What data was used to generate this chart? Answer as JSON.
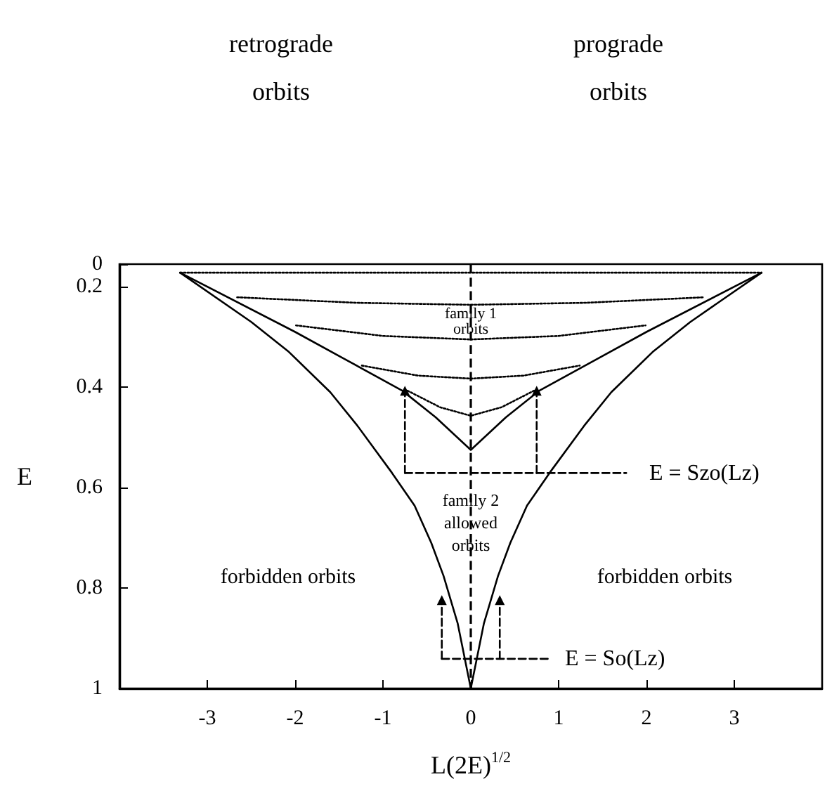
{
  "chart_data": {
    "type": "line",
    "xlabel": "L(2E)$^{1/2}$",
    "ylabel": "E",
    "xlim": [
      -4,
      4
    ],
    "xticks": [
      -3,
      -2,
      -1,
      0,
      1,
      2,
      3
    ],
    "ylim": [
      1,
      0.155
    ],
    "yticks": [
      {
        "value": 0.155,
        "label": "0"
      },
      0.2,
      0.4,
      0.6,
      0.8,
      1
    ],
    "grid": false,
    "marker": "none",
    "ref_lines": [
      {
        "axis": "x",
        "value": 0,
        "line_style": "dashed",
        "color": "#000000"
      }
    ],
    "series": [
      {
        "color": "#000000",
        "line_style": "solid",
        "x": [
          -3.31,
          -2.5,
          -2.07,
          -1.6,
          -1.29,
          -0.9,
          -0.64,
          -0.45,
          -0.31,
          -0.15,
          0
        ],
        "values": [
          0.172,
          0.27,
          0.33,
          0.41,
          0.477,
          0.57,
          0.636,
          0.71,
          0.776,
          0.87,
          1
        ]
      },
      {
        "color": "#000000",
        "line_style": "solid",
        "x": [
          0,
          0.15,
          0.31,
          0.45,
          0.64,
          0.9,
          1.29,
          1.6,
          2.07,
          2.5,
          3.31
        ],
        "values": [
          1,
          0.87,
          0.776,
          0.71,
          0.636,
          0.57,
          0.477,
          0.41,
          0.33,
          0.27,
          0.172
        ]
      },
      {
        "color": "#000000",
        "line_style": "solid",
        "x": [
          -3.31,
          -2,
          -0.78,
          -0.4,
          0,
          0.4,
          0.78,
          2,
          3.31
        ],
        "values": [
          0.172,
          0.29,
          0.407,
          0.46,
          0.525,
          0.46,
          0.407,
          0.29,
          0.172
        ]
      },
      {
        "color": "#000000",
        "line_style": "dotted",
        "x": [
          -3.31,
          0,
          3.31
        ],
        "values": [
          0.172,
          0.172,
          0.172
        ]
      },
      {
        "color": "#000000",
        "line_style": "dotted",
        "x": [
          -2.66,
          -1.3,
          0,
          1.3,
          2.66
        ],
        "values": [
          0.221,
          0.232,
          0.236,
          0.232,
          0.221
        ]
      },
      {
        "color": "#000000",
        "line_style": "dotted",
        "x": [
          -1.99,
          -1,
          0,
          1,
          1.99
        ],
        "values": [
          0.277,
          0.298,
          0.305,
          0.298,
          0.277
        ]
      },
      {
        "color": "#000000",
        "line_style": "dotted",
        "x": [
          -1.24,
          -0.6,
          0,
          0.6,
          1.24
        ],
        "values": [
          0.357,
          0.377,
          0.383,
          0.377,
          0.357
        ]
      },
      {
        "color": "#000000",
        "line_style": "dotted",
        "x": [
          -0.72,
          -0.35,
          0,
          0.35,
          0.72
        ],
        "values": [
          0.407,
          0.44,
          0.457,
          0.44,
          0.407
        ]
      },
      {
        "color": "#000000",
        "line_style": "dashed",
        "x": [
          -0.75,
          1.77
        ],
        "values": [
          0.571,
          0.571
        ]
      },
      {
        "color": "#000000",
        "line_style": "dashed",
        "marker": "triangle",
        "x": [
          -0.75,
          -0.75
        ],
        "values": [
          0.571,
          0.407
        ]
      },
      {
        "color": "#000000",
        "line_style": "dashed",
        "marker": "triangle",
        "x": [
          0.75,
          0.75
        ],
        "values": [
          0.571,
          0.407
        ]
      },
      {
        "color": "#000000",
        "line_style": "dashed",
        "x": [
          -0.33,
          0.89
        ],
        "values": [
          0.941,
          0.941
        ]
      },
      {
        "color": "#000000",
        "line_style": "dashed",
        "marker": "triangle",
        "x": [
          -0.33,
          -0.33
        ],
        "values": [
          0.941,
          0.824
        ]
      },
      {
        "color": "#000000",
        "line_style": "dashed",
        "marker": "triangle",
        "x": [
          0.33,
          0.33
        ],
        "values": [
          0.941,
          0.824
        ]
      }
    ],
    "annotations": [
      "retrograde orbits",
      "prograde orbits",
      "family 1 orbits",
      "family 2 allowed orbits",
      "forbidden orbits",
      "forbidden orbits",
      "E = Szo(Lz)",
      "E = So(Lz)"
    ]
  }
}
